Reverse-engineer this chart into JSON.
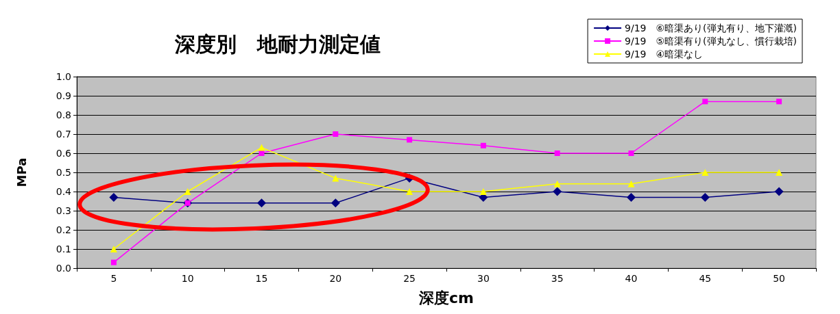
{
  "chart_data": {
    "type": "line",
    "title": "深度別　地耐力測定値",
    "xlabel": "深度cm",
    "ylabel": "MPa",
    "categories": [
      "5",
      "10",
      "15",
      "20",
      "25",
      "30",
      "35",
      "40",
      "45",
      "50"
    ],
    "series": [
      {
        "name": "9/19　⑥暗渠あり(弾丸有り、地下灌漑)",
        "color": "#000080",
        "marker": "diamond",
        "values": [
          0.37,
          0.34,
          0.34,
          0.34,
          0.47,
          0.37,
          0.4,
          0.37,
          0.37,
          0.4
        ]
      },
      {
        "name": "9/19　⑤暗渠有り(弾丸なし、慣行栽培)",
        "color": "#ff00ff",
        "marker": "square",
        "values": [
          0.03,
          0.34,
          0.6,
          0.7,
          0.67,
          0.64,
          0.6,
          0.6,
          0.87,
          0.87
        ]
      },
      {
        "name": "9/19　④暗渠なし",
        "color": "#ffff00",
        "marker": "triangle",
        "values": [
          0.1,
          0.4,
          0.63,
          0.47,
          0.4,
          0.4,
          0.44,
          0.44,
          0.5,
          0.5
        ]
      }
    ],
    "ylim": [
      0,
      1
    ],
    "yticks": [
      {
        "value": 0,
        "label": "0.0"
      },
      0.1,
      0.2,
      0.3,
      0.4,
      0.5,
      0.6,
      0.7,
      0.8,
      0.9,
      {
        "value": 1,
        "label": "1.0"
      }
    ],
    "grid": "y",
    "legend": "top right"
  }
}
